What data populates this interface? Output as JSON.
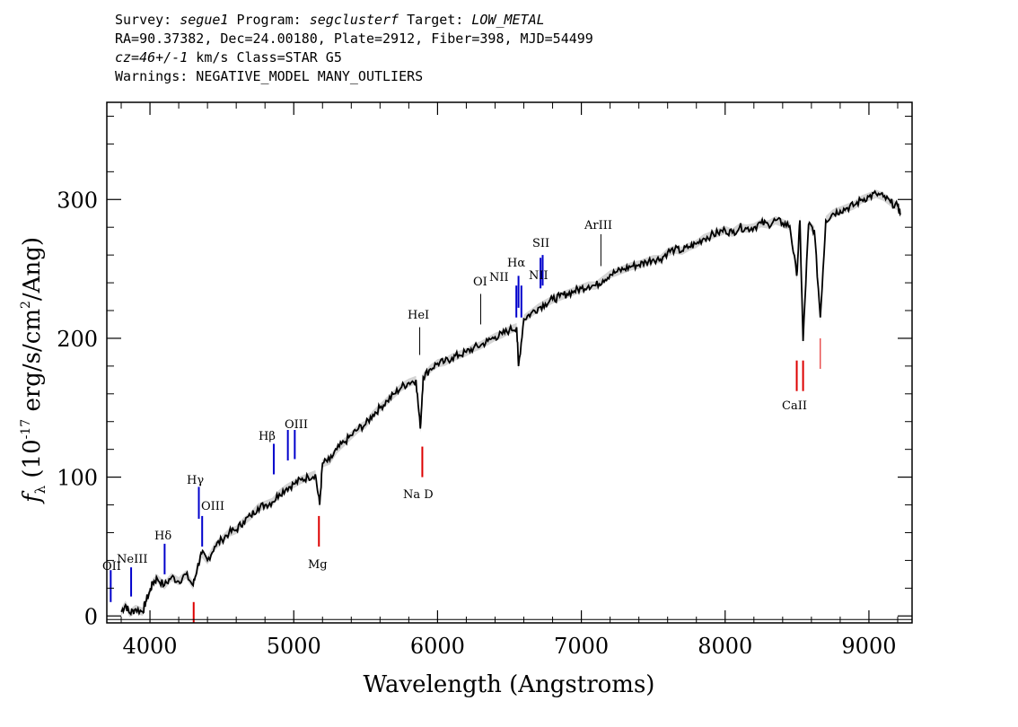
{
  "header": {
    "line1": [
      {
        "text": "Survey: ",
        "italic": false
      },
      {
        "text": "segue1",
        "italic": true
      },
      {
        "text": " Program: ",
        "italic": false
      },
      {
        "text": "segclusterf",
        "italic": true
      },
      {
        "text": " Target: ",
        "italic": false
      },
      {
        "text": "LOW_METAL",
        "italic": true
      }
    ],
    "line2": "RA=90.37382, Dec=24.00180, Plate=2912, Fiber=398, MJD=54499",
    "line3_italic": "cz=46+/-1",
    "line3_rest": " km/s Class=STAR G5",
    "line4": "Warnings: NEGATIVE_MODEL MANY_OUTLIERS"
  },
  "colors": {
    "emission": "#0000cc",
    "absorption": "#dd0000",
    "sky": "#000000",
    "spectrum": "#000000",
    "error_band": "#aaaaaa"
  },
  "chart_data": {
    "type": "line",
    "xlabel": "Wavelength (Angstroms)",
    "ylabel": "f_λ (10^-17 erg/s/cm^2/Ang)",
    "xlim": [
      3700,
      9300
    ],
    "ylim": [
      -5,
      370
    ],
    "x_ticks": [
      4000,
      5000,
      6000,
      7000,
      8000,
      9000
    ],
    "y_ticks": [
      0,
      100,
      200,
      300
    ],
    "series": [
      {
        "points": [
          [
            3800,
            3
          ],
          [
            3830,
            8
          ],
          [
            3860,
            2
          ],
          [
            3900,
            5
          ],
          [
            3950,
            3
          ],
          [
            3970,
            10
          ],
          [
            4000,
            18
          ],
          [
            4020,
            24
          ],
          [
            4050,
            27
          ],
          [
            4100,
            22
          ],
          [
            4150,
            28
          ],
          [
            4200,
            25
          ],
          [
            4250,
            30
          ],
          [
            4300,
            22
          ],
          [
            4330,
            35
          ],
          [
            4360,
            45
          ],
          [
            4400,
            40
          ],
          [
            4450,
            50
          ],
          [
            4500,
            55
          ],
          [
            4550,
            60
          ],
          [
            4600,
            62
          ],
          [
            4650,
            68
          ],
          [
            4700,
            72
          ],
          [
            4750,
            78
          ],
          [
            4800,
            80
          ],
          [
            4850,
            82
          ],
          [
            4900,
            88
          ],
          [
            4950,
            92
          ],
          [
            5000,
            95
          ],
          [
            5050,
            98
          ],
          [
            5100,
            100
          ],
          [
            5150,
            102
          ],
          [
            5180,
            80
          ],
          [
            5200,
            110
          ],
          [
            5250,
            112
          ],
          [
            5300,
            120
          ],
          [
            5350,
            125
          ],
          [
            5400,
            130
          ],
          [
            5450,
            135
          ],
          [
            5500,
            138
          ],
          [
            5550,
            145
          ],
          [
            5600,
            150
          ],
          [
            5650,
            155
          ],
          [
            5700,
            160
          ],
          [
            5750,
            165
          ],
          [
            5800,
            168
          ],
          [
            5850,
            170
          ],
          [
            5880,
            135
          ],
          [
            5900,
            172
          ],
          [
            5950,
            178
          ],
          [
            6000,
            182
          ],
          [
            6050,
            183
          ],
          [
            6100,
            186
          ],
          [
            6150,
            188
          ],
          [
            6200,
            190
          ],
          [
            6250,
            193
          ],
          [
            6300,
            195
          ],
          [
            6350,
            198
          ],
          [
            6400,
            201
          ],
          [
            6450,
            203
          ],
          [
            6500,
            206
          ],
          [
            6550,
            208
          ],
          [
            6563,
            180
          ],
          [
            6600,
            214
          ],
          [
            6650,
            218
          ],
          [
            6700,
            222
          ],
          [
            6750,
            225
          ],
          [
            6800,
            228
          ],
          [
            6850,
            230
          ],
          [
            6900,
            232
          ],
          [
            6950,
            234
          ],
          [
            7000,
            236
          ],
          [
            7050,
            238
          ],
          [
            7100,
            238
          ],
          [
            7150,
            242
          ],
          [
            7200,
            246
          ],
          [
            7250,
            248
          ],
          [
            7300,
            250
          ],
          [
            7350,
            252
          ],
          [
            7400,
            253
          ],
          [
            7450,
            255
          ],
          [
            7500,
            257
          ],
          [
            7550,
            257
          ],
          [
            7600,
            262
          ],
          [
            7650,
            264
          ],
          [
            7700,
            263
          ],
          [
            7750,
            266
          ],
          [
            7800,
            268
          ],
          [
            7850,
            272
          ],
          [
            7900,
            274
          ],
          [
            7950,
            276
          ],
          [
            8000,
            278
          ],
          [
            8050,
            276
          ],
          [
            8100,
            280
          ],
          [
            8150,
            279
          ],
          [
            8200,
            280
          ],
          [
            8250,
            283
          ],
          [
            8300,
            282
          ],
          [
            8350,
            285
          ],
          [
            8400,
            283
          ],
          [
            8450,
            281
          ],
          [
            8498,
            245
          ],
          [
            8520,
            285
          ],
          [
            8542,
            198
          ],
          [
            8580,
            282
          ],
          [
            8620,
            278
          ],
          [
            8662,
            215
          ],
          [
            8700,
            285
          ],
          [
            8750,
            290
          ],
          [
            8800,
            292
          ],
          [
            8850,
            294
          ],
          [
            8900,
            296
          ],
          [
            8950,
            300
          ],
          [
            9000,
            302
          ],
          [
            9050,
            304
          ],
          [
            9100,
            302
          ],
          [
            9150,
            298
          ],
          [
            9200,
            295
          ],
          [
            9220,
            290
          ]
        ]
      }
    ],
    "emission_lines": [
      {
        "label": "OII",
        "wave": 3727,
        "y0": 10,
        "y1": 33
      },
      {
        "label": "NeIII",
        "wave": 3869,
        "y0": 14,
        "y1": 35
      },
      {
        "label": "Hδ",
        "wave": 4102,
        "y0": 30,
        "y1": 52
      },
      {
        "label": "Hγ",
        "wave": 4340,
        "y0": 70,
        "y1": 93
      },
      {
        "label": "OIII",
        "wave": 4363,
        "y0": 50,
        "y1": 72
      },
      {
        "label": "Hβ",
        "wave": 4861,
        "y0": 102,
        "y1": 124
      },
      {
        "label": "OIII",
        "wave": 4959,
        "y0": 112,
        "y1": 134
      },
      {
        "label": "OIII",
        "wave": 5007,
        "y0": 113,
        "y1": 134
      },
      {
        "label": "HeI",
        "wave": 5876,
        "y0": 188,
        "y1": 208
      },
      {
        "label": "OI",
        "wave": 6300,
        "y0": 210,
        "y1": 232
      },
      {
        "label": "NII",
        "wave": 6548,
        "y0": 215,
        "y1": 238
      },
      {
        "label": "Hα",
        "wave": 6563,
        "y0": 222,
        "y1": 245
      },
      {
        "label": "NII",
        "wave": 6583,
        "y0": 215,
        "y1": 238
      },
      {
        "label": "SII",
        "wave": 6716,
        "y0": 236,
        "y1": 258
      },
      {
        "label": "SII",
        "wave": 6731,
        "y0": 238,
        "y1": 260
      },
      {
        "label": "ArIII",
        "wave": 7136,
        "y0": 252,
        "y1": 275
      }
    ],
    "absorption_lines": [
      {
        "label": "",
        "wave": 4304,
        "y0": -5,
        "y1": 10
      },
      {
        "label": "Mg",
        "wave": 5175,
        "y0": 50,
        "y1": 72
      },
      {
        "label": "Na D",
        "wave": 5894,
        "y0": 100,
        "y1": 122
      },
      {
        "label": "CaII",
        "wave": 8498,
        "y0": 162,
        "y1": 184
      },
      {
        "label": "",
        "wave": 8542,
        "y0": 162,
        "y1": 184
      },
      {
        "label": "",
        "wave": 8662,
        "y0": 178,
        "y1": 200
      }
    ],
    "line_label_texts": {
      "oii": "OII",
      "neiii": "NeIII",
      "hdelta": "Hδ",
      "hgamma": "Hγ",
      "oiii_a": "OIII",
      "hbeta": "Hβ",
      "oiii_b": "OIII",
      "hei": "HeI",
      "oi": "OI",
      "nii_a": "NII",
      "halpha": "Hα",
      "sii": "SII",
      "nii_b": "NII",
      "ariii": "ArIII",
      "mg": "Mg",
      "nad": "Na D",
      "caii": "CaII"
    }
  }
}
